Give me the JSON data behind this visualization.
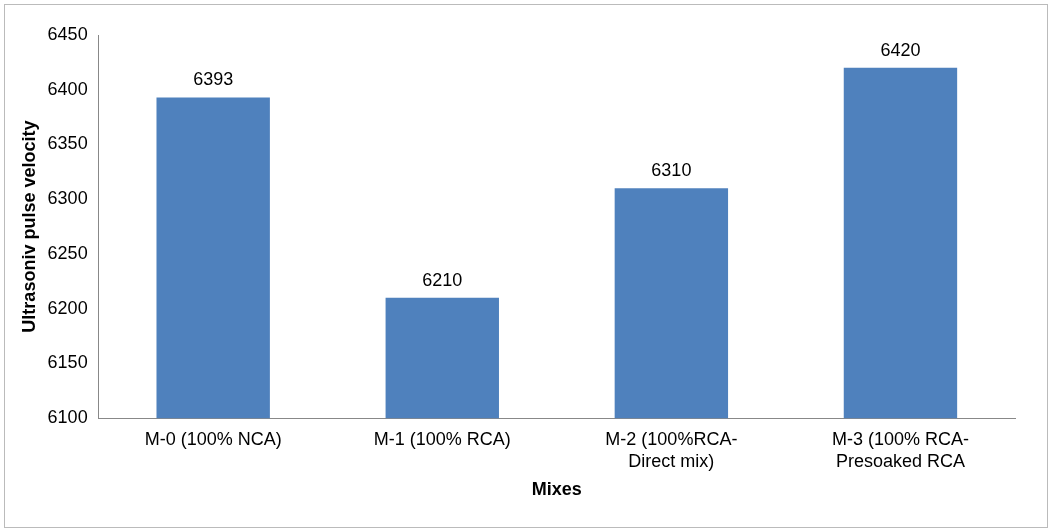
{
  "chart_data": {
    "type": "bar",
    "xlabel": "Mixes",
    "ylabel": "Ultrasoniv pulse velocity",
    "categories": [
      "M-0 (100% NCA)",
      "M-1 (100% RCA)",
      "M-2 (100%RCA-\nDirect mix)",
      "M-3 (100% RCA-\nPresoaked RCA"
    ],
    "values": [
      6393,
      6210,
      6310,
      6420
    ],
    "color": "#4f81bd",
    "ylim": [
      6100,
      6450
    ],
    "yticks": [
      6100,
      6150,
      6200,
      6250,
      6300,
      6350,
      6400,
      6450
    ],
    "data_labels": true,
    "grid": false,
    "legend": false
  }
}
